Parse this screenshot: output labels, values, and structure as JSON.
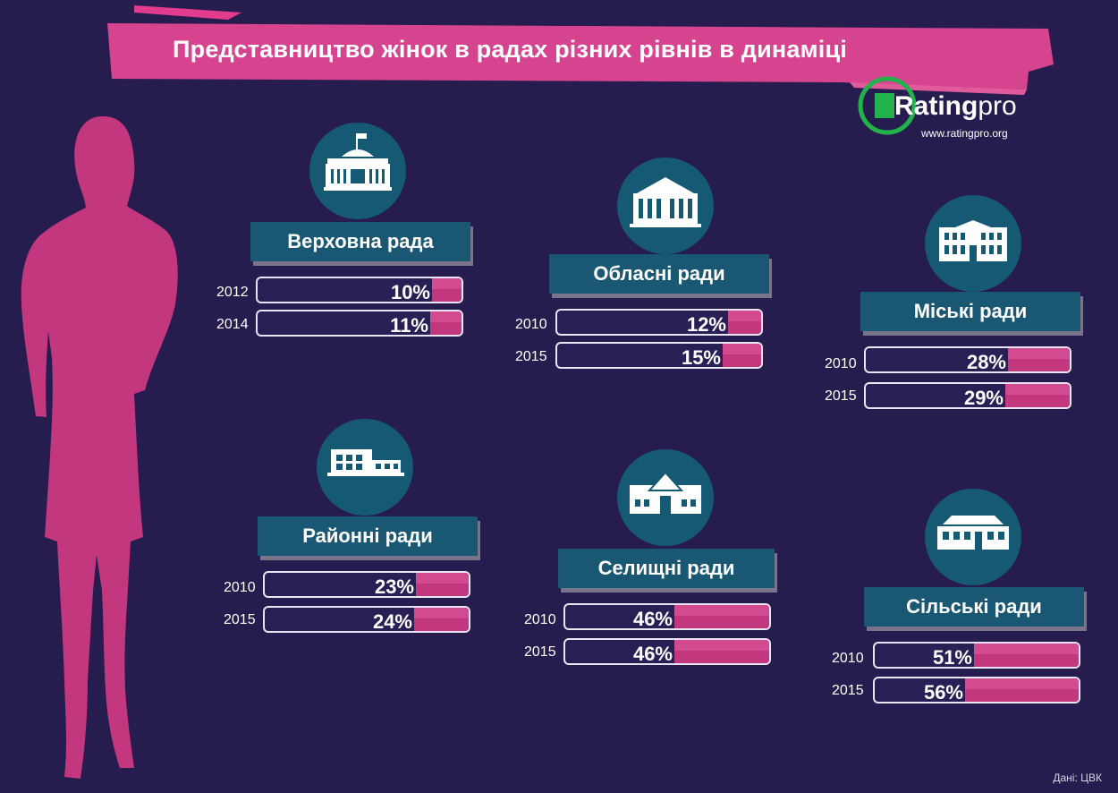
{
  "title": "Представництво жінок в радах різних рівнів в динаміці",
  "logo": {
    "brand_main": "Rating",
    "brand_suffix": "pro",
    "url": "www.ratingpro.org"
  },
  "source": "Дані: ЦВК",
  "colors": {
    "background": "#271c4e",
    "accent": "#c3377f",
    "ribbon": "#1a5773",
    "icon_circle": "#155a72",
    "logo_green": "#22b24c"
  },
  "chart_data": [
    {
      "type": "bar",
      "title": "Верховна рада",
      "icon": "parliament-building-icon",
      "categories": [
        "2012",
        "2014"
      ],
      "values": [
        10,
        11
      ],
      "unit": "%",
      "ylim": [
        0,
        100
      ]
    },
    {
      "type": "bar",
      "title": "Обласні ради",
      "icon": "regional-council-building-icon",
      "categories": [
        "2010",
        "2015"
      ],
      "values": [
        12,
        15
      ],
      "unit": "%",
      "ylim": [
        0,
        100
      ]
    },
    {
      "type": "bar",
      "title": "Міські ради",
      "icon": "city-council-building-icon",
      "categories": [
        "2010",
        "2015"
      ],
      "values": [
        28,
        29
      ],
      "unit": "%",
      "ylim": [
        0,
        100
      ]
    },
    {
      "type": "bar",
      "title": "Районні ради",
      "icon": "district-council-building-icon",
      "categories": [
        "2010",
        "2015"
      ],
      "values": [
        23,
        24
      ],
      "unit": "%",
      "ylim": [
        0,
        100
      ]
    },
    {
      "type": "bar",
      "title": "Селищні ради",
      "icon": "settlement-council-house-icon",
      "categories": [
        "2010",
        "2015"
      ],
      "values": [
        46,
        46
      ],
      "unit": "%",
      "ylim": [
        0,
        100
      ]
    },
    {
      "type": "bar",
      "title": "Сільські ради",
      "icon": "village-council-house-icon",
      "categories": [
        "2010",
        "2015"
      ],
      "values": [
        51,
        56
      ],
      "unit": "%",
      "ylim": [
        0,
        100
      ]
    }
  ]
}
